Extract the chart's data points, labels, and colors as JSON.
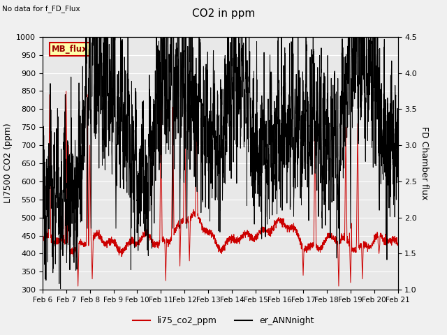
{
  "title": "CO2 in ppm",
  "ylabel_left": "LI7500 CO2 (ppm)",
  "ylabel_right": "FD Chamber flux",
  "ylim_left": [
    300,
    1000
  ],
  "ylim_right": [
    1.0,
    4.5
  ],
  "no_data_text": "No data for f_FD_Flux",
  "mb_flux_label": "MB_flux",
  "legend_labels": [
    "li75_co2_ppm",
    "er_ANNnight"
  ],
  "line_colors": [
    "#cc0000",
    "#000000"
  ],
  "fig_facecolor": "#f0f0f0",
  "plot_facecolor": "#e8e8e8",
  "xtick_labels": [
    "Feb 6",
    "Feb 7",
    "Feb 8",
    "Feb 9",
    "Feb 10",
    "Feb 11",
    "Feb 12",
    "Feb 13",
    "Feb 14",
    "Feb 15",
    "Feb 16",
    "Feb 17",
    "Feb 18",
    "Feb 19",
    "Feb 20",
    "Feb 21"
  ],
  "grid_color": "#ffffff",
  "yticks_left": [
    300,
    350,
    400,
    450,
    500,
    550,
    600,
    650,
    700,
    750,
    800,
    850,
    900,
    950,
    1000
  ],
  "yticks_right": [
    1.0,
    1.5,
    2.0,
    2.5,
    3.0,
    3.5,
    4.0,
    4.5
  ]
}
